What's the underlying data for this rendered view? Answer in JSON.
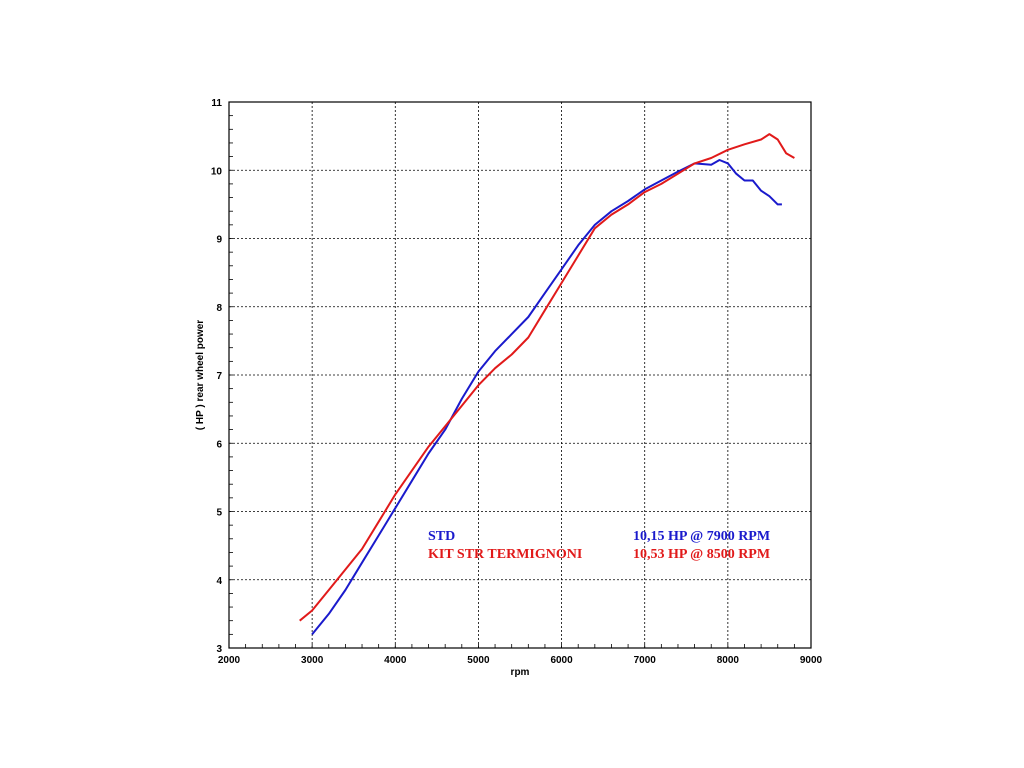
{
  "chart_data": {
    "type": "line",
    "xlabel": "rpm",
    "ylabel": "( HP )  rear wheel power",
    "xlim": [
      2000,
      9000
    ],
    "ylim": [
      3,
      11
    ],
    "x_ticks": [
      "2000",
      "3000",
      "4000",
      "5000",
      "6000",
      "7000",
      "8000",
      "9000"
    ],
    "y_ticks": [
      "3",
      "4",
      "5",
      "6",
      "7",
      "8",
      "9",
      "10",
      "11"
    ],
    "grid": true,
    "series": [
      {
        "name": "STD",
        "peak_label": "10,15 HP @ 7900 RPM",
        "color": "#1a1acc",
        "points": [
          [
            3000,
            3.2
          ],
          [
            3200,
            3.5
          ],
          [
            3400,
            3.85
          ],
          [
            3600,
            4.25
          ],
          [
            3800,
            4.65
          ],
          [
            4000,
            5.05
          ],
          [
            4200,
            5.45
          ],
          [
            4400,
            5.85
          ],
          [
            4600,
            6.2
          ],
          [
            4800,
            6.65
          ],
          [
            5000,
            7.05
          ],
          [
            5200,
            7.35
          ],
          [
            5400,
            7.6
          ],
          [
            5600,
            7.85
          ],
          [
            5800,
            8.2
          ],
          [
            6000,
            8.55
          ],
          [
            6200,
            8.9
          ],
          [
            6400,
            9.2
          ],
          [
            6600,
            9.4
          ],
          [
            6800,
            9.55
          ],
          [
            7000,
            9.72
          ],
          [
            7200,
            9.85
          ],
          [
            7400,
            9.98
          ],
          [
            7600,
            10.1
          ],
          [
            7800,
            10.08
          ],
          [
            7900,
            10.15
          ],
          [
            8000,
            10.1
          ],
          [
            8100,
            9.95
          ],
          [
            8200,
            9.85
          ],
          [
            8300,
            9.85
          ],
          [
            8400,
            9.7
          ],
          [
            8500,
            9.62
          ],
          [
            8600,
            9.5
          ],
          [
            8650,
            9.5
          ]
        ]
      },
      {
        "name": "KIT STR TERMIGNONI",
        "peak_label": "10,53 HP @ 8500 RPM",
        "color": "#e11a1a",
        "points": [
          [
            2850,
            3.4
          ],
          [
            3000,
            3.55
          ],
          [
            3200,
            3.85
          ],
          [
            3400,
            4.15
          ],
          [
            3600,
            4.45
          ],
          [
            3800,
            4.85
          ],
          [
            4000,
            5.25
          ],
          [
            4200,
            5.6
          ],
          [
            4400,
            5.95
          ],
          [
            4600,
            6.25
          ],
          [
            4800,
            6.55
          ],
          [
            5000,
            6.85
          ],
          [
            5200,
            7.1
          ],
          [
            5400,
            7.3
          ],
          [
            5600,
            7.55
          ],
          [
            5800,
            7.95
          ],
          [
            6000,
            8.35
          ],
          [
            6200,
            8.75
          ],
          [
            6400,
            9.15
          ],
          [
            6600,
            9.35
          ],
          [
            6800,
            9.5
          ],
          [
            7000,
            9.68
          ],
          [
            7200,
            9.8
          ],
          [
            7400,
            9.95
          ],
          [
            7600,
            10.1
          ],
          [
            7800,
            10.18
          ],
          [
            8000,
            10.3
          ],
          [
            8200,
            10.38
          ],
          [
            8400,
            10.45
          ],
          [
            8500,
            10.53
          ],
          [
            8600,
            10.45
          ],
          [
            8700,
            10.25
          ],
          [
            8800,
            10.18
          ]
        ]
      }
    ],
    "legend_position": "bottom-right inside plot"
  }
}
